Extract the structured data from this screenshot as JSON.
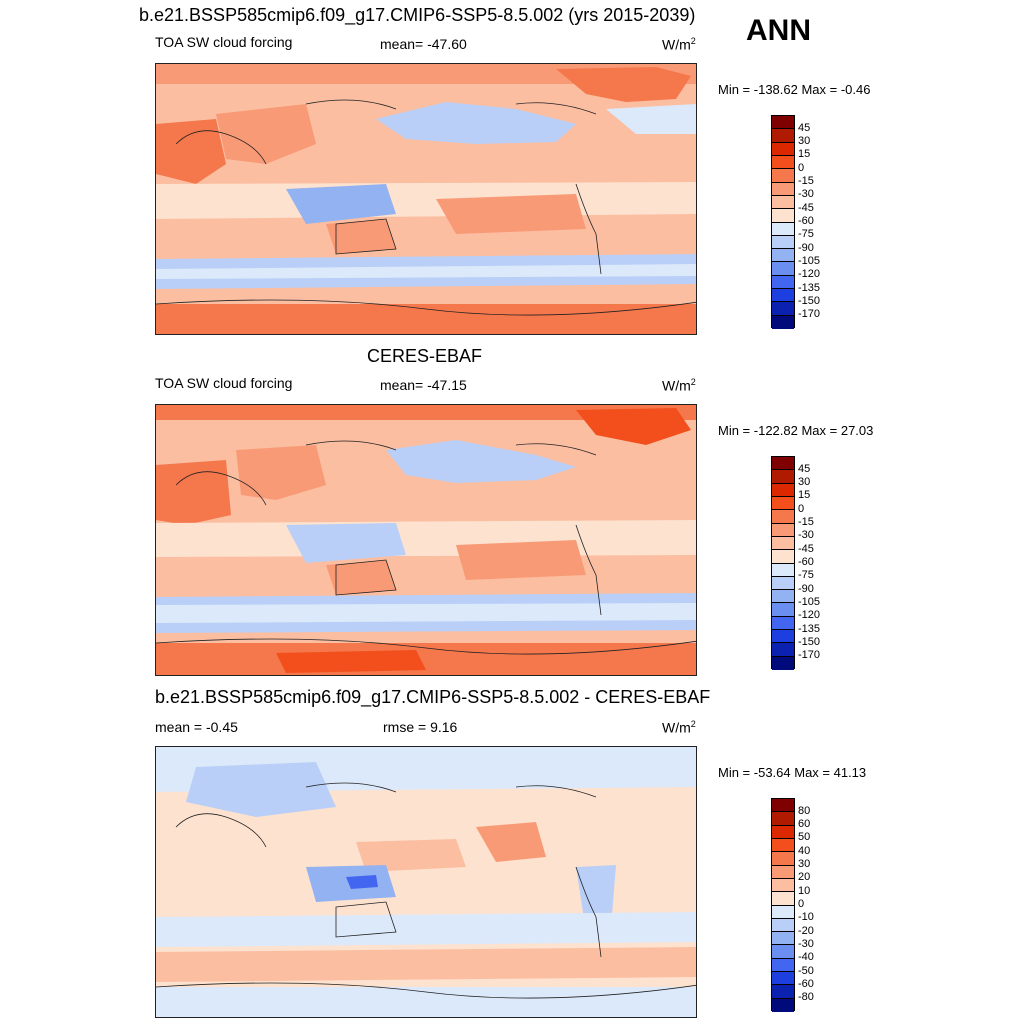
{
  "season": "ANN",
  "units_main": "W/m",
  "units_sup": "2",
  "panels": [
    {
      "title": "b.e21.BSSP585cmip6.f09_g17.CMIP6-SSP5-8.5.002 (yrs 2015-2039)",
      "variable": "TOA SW cloud forcing",
      "stat1": "mean= -47.60",
      "stat2": "",
      "minmax": "Min = -138.62 Max =  -0.46",
      "colorbar_ticks": [
        "45",
        "30",
        "15",
        "0",
        "-15",
        "-30",
        "-45",
        "-60",
        "-75",
        "-90",
        "-105",
        "-120",
        "-135",
        "-150",
        "-170"
      ]
    },
    {
      "title": "CERES-EBAF",
      "variable": "TOA SW cloud forcing",
      "stat1": "mean= -47.15",
      "stat2": "",
      "minmax": "Min = -122.82 Max =  27.03",
      "colorbar_ticks": [
        "45",
        "30",
        "15",
        "0",
        "-15",
        "-30",
        "-45",
        "-60",
        "-75",
        "-90",
        "-105",
        "-120",
        "-135",
        "-150",
        "-170"
      ]
    },
    {
      "title": "b.e21.BSSP585cmip6.f09_g17.CMIP6-SSP5-8.5.002 - CERES-EBAF",
      "variable": "",
      "stat1": "mean =  -0.45",
      "stat2": "rmse =   9.16",
      "minmax": "Min = -53.64 Max =  41.13",
      "colorbar_ticks": [
        "80",
        "60",
        "50",
        "40",
        "30",
        "20",
        "10",
        "0",
        "-10",
        "-20",
        "-30",
        "-40",
        "-50",
        "-60",
        "-80"
      ]
    }
  ],
  "chart_data": [
    {
      "type": "heatmap",
      "title": "b.e21.BSSP585cmip6.f09_g17.CMIP6-SSP5-8.5.002 (yrs 2015-2039)",
      "subtitle": "TOA SW cloud forcing",
      "units": "W/m2",
      "mean": -47.6,
      "min": -138.62,
      "max": -0.46,
      "levels": [
        45,
        30,
        15,
        0,
        -15,
        -30,
        -45,
        -60,
        -75,
        -90,
        -105,
        -120,
        -135,
        -150,
        -170
      ]
    },
    {
      "type": "heatmap",
      "title": "CERES-EBAF",
      "subtitle": "TOA SW cloud forcing",
      "units": "W/m2",
      "mean": -47.15,
      "min": -122.82,
      "max": 27.03,
      "levels": [
        45,
        30,
        15,
        0,
        -15,
        -30,
        -45,
        -60,
        -75,
        -90,
        -105,
        -120,
        -135,
        -150,
        -170
      ]
    },
    {
      "type": "heatmap",
      "title": "b.e21.BSSP585cmip6.f09_g17.CMIP6-SSP5-8.5.002 - CERES-EBAF",
      "units": "W/m2",
      "mean": -0.45,
      "rmse": 9.16,
      "min": -53.64,
      "max": 41.13,
      "levels": [
        80,
        60,
        50,
        40,
        30,
        20,
        10,
        0,
        -10,
        -20,
        -30,
        -40,
        -50,
        -60,
        -80
      ]
    }
  ],
  "colors": {
    "cbar": [
      "#7f0000",
      "#b01a00",
      "#dc2800",
      "#f24f1c",
      "#f5774c",
      "#f99a76",
      "#fbbea1",
      "#fde2cf",
      "#dce9fa",
      "#b9cff7",
      "#93b2f2",
      "#6b8ff0",
      "#4266f0",
      "#1e3fe0",
      "#0b22b0",
      "#000a7a"
    ]
  }
}
